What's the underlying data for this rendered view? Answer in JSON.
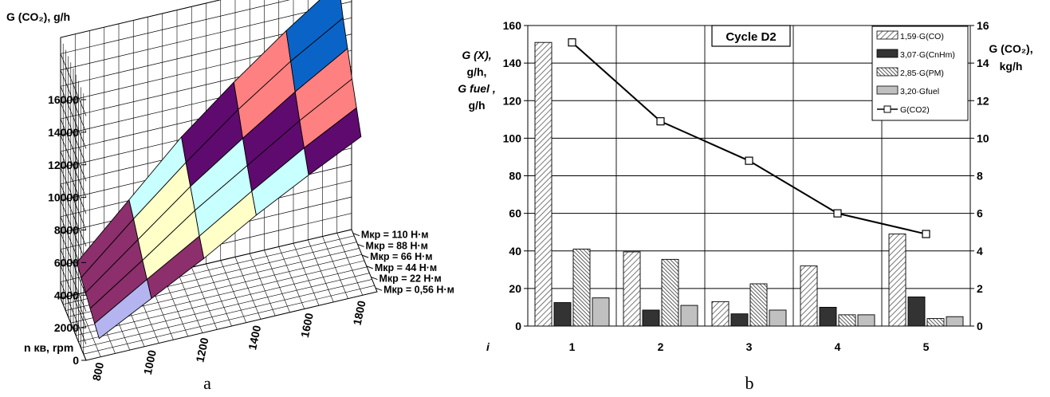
{
  "chart_data": [
    {
      "panel": "a",
      "type": "surface3d",
      "zlabel": "G (CO₂), g/h",
      "z_ticks": [
        "0",
        "2000",
        "4000",
        "6000",
        "8000",
        "10000",
        "12000",
        "14000",
        "16000"
      ],
      "zlim": [
        0,
        16000
      ],
      "xlabel": "n кв, rpm",
      "x_ticks": [
        "800",
        "1000",
        "1200",
        "1400",
        "1600",
        "1800"
      ],
      "y_ticks": [
        "Мкр = 0,56 Н·м",
        "Мкр = 22 Н·м",
        "Мкр = 44 Н·м",
        "Мкр = 66 Н·м",
        "Мкр = 88 Н·м",
        "Мкр = 110 Н·м"
      ],
      "band_colors": [
        "#b4b4f0",
        "#8c2f6c",
        "#ffffc8",
        "#c8ffff",
        "#5f0a6f",
        "#ff8080",
        "#0a64c8",
        "#c8c8ff"
      ],
      "surface": [
        [
          900,
          2600,
          4300,
          6200,
          7900,
          9500
        ],
        [
          1150,
          3100,
          5000,
          7000,
          8900,
          10600
        ],
        [
          1400,
          3600,
          5900,
          7900,
          9900,
          11700
        ],
        [
          1700,
          4200,
          6700,
          8900,
          11000,
          12900
        ],
        [
          1950,
          4800,
          7500,
          10000,
          12200,
          14100
        ],
        [
          2200,
          5300,
          8400,
          11000,
          13400,
          15600
        ]
      ]
    },
    {
      "panel": "b",
      "type": "bar",
      "title": "Cycle D2",
      "categories": [
        "1",
        "2",
        "3",
        "4",
        "5"
      ],
      "xlabel": "i",
      "ylabel": [
        "G (X),",
        "g/h,",
        "G fuel ,",
        "g/h"
      ],
      "ylim": [
        0,
        160
      ],
      "y_ticks": [
        "0",
        "20",
        "40",
        "60",
        "80",
        "100",
        "120",
        "140",
        "160"
      ],
      "y2label": [
        "G (CO₂),",
        "kg/h"
      ],
      "y2lim": [
        0,
        16
      ],
      "y2_ticks": [
        "0",
        "2",
        "4",
        "6",
        "8",
        "10",
        "12",
        "14",
        "16"
      ],
      "legend_position": "top-right",
      "series": [
        {
          "name": "1,59·G(CO)",
          "kind": "bar",
          "pattern": "hatch-light",
          "values": [
            151,
            39.5,
            13,
            32,
            49
          ]
        },
        {
          "name": "3,07·G(CnHm)",
          "kind": "bar",
          "pattern": "solid-dark",
          "values": [
            12.5,
            8.5,
            6.5,
            10,
            15.5
          ]
        },
        {
          "name": "2,85·G(PM)",
          "kind": "bar",
          "pattern": "hatch-dense",
          "values": [
            41,
            35.5,
            22.5,
            6,
            4
          ]
        },
        {
          "name": "3,20·Gfuel",
          "kind": "bar",
          "pattern": "solid-grey",
          "values": [
            15,
            11,
            8.5,
            6,
            5
          ]
        },
        {
          "name": "G(CO2)",
          "kind": "line",
          "axis": "y2",
          "values": [
            15.1,
            10.9,
            8.8,
            6.0,
            4.9
          ]
        }
      ]
    }
  ],
  "labels": {
    "panel_a": "a",
    "panel_b": "b"
  }
}
